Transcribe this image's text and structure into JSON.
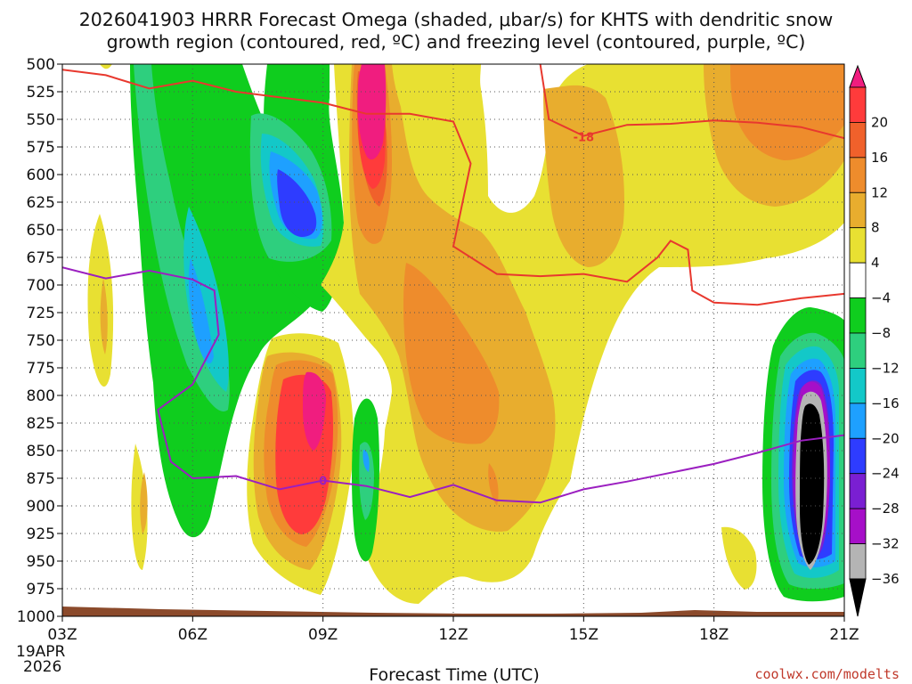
{
  "chart_data": {
    "type": "heatmap",
    "title_line1": "2026041903 HRRR Forecast Omega (shaded, μbar/s) for KHTS with dendritic snow",
    "title_line2": "growth region (contoured, red, ºC) and freezing level (contoured, purple, ºC)",
    "xlabel": "Forecast Time (UTC)",
    "ylabel": "",
    "x_ticks": [
      "03Z",
      "06Z",
      "09Z",
      "12Z",
      "15Z",
      "18Z",
      "21Z"
    ],
    "x_hours": [
      3,
      6,
      9,
      12,
      15,
      18,
      21
    ],
    "start_date_line1": "19APR",
    "start_date_line2": "2026",
    "xlim": [
      3,
      21
    ],
    "ylim": [
      1000,
      500
    ],
    "y_ticks": [
      500,
      525,
      550,
      575,
      600,
      625,
      650,
      675,
      700,
      725,
      750,
      775,
      800,
      825,
      850,
      875,
      900,
      925,
      950,
      975,
      1000
    ],
    "colorbar": {
      "labels": [
        "20",
        "16",
        "12",
        "8",
        "4",
        "−4",
        "−8",
        "−12",
        "−16",
        "−20",
        "−24",
        "−28",
        "−32",
        "−36"
      ],
      "colors": [
        "#f01d7f",
        "#ff3b3b",
        "#f0612b",
        "#ee8c2c",
        "#e8ad2e",
        "#e8e032",
        "#ffffff",
        "#0fcd1e",
        "#2ecf7e",
        "#13c8c8",
        "#1ea0ff",
        "#2e3cff",
        "#7a1fd2",
        "#a60fc8",
        "#b4b4b4",
        "#000000"
      ]
    },
    "series": [
      {
        "name": "dendritic snow growth region (-18 ºC)",
        "label": "-18",
        "color": "#e8382e",
        "points": [
          [
            3.0,
            505
          ],
          [
            4.0,
            510
          ],
          [
            5.0,
            522
          ],
          [
            6.0,
            515
          ],
          [
            7.0,
            525
          ],
          [
            8.0,
            530
          ],
          [
            9.0,
            535
          ],
          [
            10.0,
            545
          ],
          [
            11.0,
            545
          ],
          [
            12.0,
            552
          ],
          [
            12.4,
            590
          ],
          [
            12.0,
            665
          ],
          [
            13.0,
            690
          ],
          [
            14.0,
            692
          ],
          [
            15.0,
            690
          ],
          [
            16.0,
            697
          ],
          [
            16.7,
            675
          ],
          [
            17.0,
            660
          ],
          [
            17.4,
            668
          ],
          [
            17.5,
            705
          ],
          [
            18.0,
            716
          ],
          [
            19.0,
            718
          ],
          [
            20.0,
            712
          ],
          [
            21.0,
            708
          ]
        ],
        "upper_points": [
          [
            14.0,
            500
          ],
          [
            14.2,
            550
          ],
          [
            15.0,
            565
          ],
          [
            16.0,
            555
          ],
          [
            17.0,
            554
          ],
          [
            18.0,
            551
          ],
          [
            19.0,
            553
          ],
          [
            20.0,
            557
          ],
          [
            21.0,
            567
          ]
        ]
      },
      {
        "name": "freezing level (0 ºC)",
        "label": "0",
        "color": "#9b1fc0",
        "points": [
          [
            3.0,
            684
          ],
          [
            4.0,
            694
          ],
          [
            5.0,
            687
          ],
          [
            6.0,
            695
          ],
          [
            6.5,
            705
          ],
          [
            6.6,
            745
          ],
          [
            6.0,
            790
          ],
          [
            5.2,
            813
          ],
          [
            5.5,
            860
          ],
          [
            6.0,
            875
          ],
          [
            7.0,
            873
          ],
          [
            8.0,
            885
          ],
          [
            9.0,
            877
          ],
          [
            10.0,
            882
          ],
          [
            11.0,
            892
          ],
          [
            12.0,
            881
          ],
          [
            13.0,
            895
          ],
          [
            14.0,
            897
          ],
          [
            15.0,
            885
          ],
          [
            16.0,
            878
          ],
          [
            17.0,
            870
          ],
          [
            18.0,
            862
          ],
          [
            19.0,
            852
          ],
          [
            20.0,
            841
          ],
          [
            21.0,
            836
          ]
        ]
      }
    ],
    "omega_cores": [
      {
        "x": 4.0,
        "p": 690,
        "value": 6
      },
      {
        "x": 5.3,
        "p": 850,
        "value": 6
      },
      {
        "x": 5.8,
        "p": 650,
        "value": -10
      },
      {
        "x": 6.0,
        "p": 720,
        "value": -16
      },
      {
        "x": 8.0,
        "p": 610,
        "value": -22
      },
      {
        "x": 9.0,
        "p": 800,
        "value": 17
      },
      {
        "x": 10.2,
        "p": 560,
        "value": 21
      },
      {
        "x": 11.0,
        "p": 770,
        "value": 14
      },
      {
        "x": 10.0,
        "p": 830,
        "value": -12
      },
      {
        "x": 14.0,
        "p": 650,
        "value": 10
      },
      {
        "x": 18.5,
        "p": 560,
        "value": 11
      },
      {
        "x": 20.0,
        "p": 850,
        "value": -38
      }
    ],
    "credit": "coolwx.com/modelts"
  }
}
